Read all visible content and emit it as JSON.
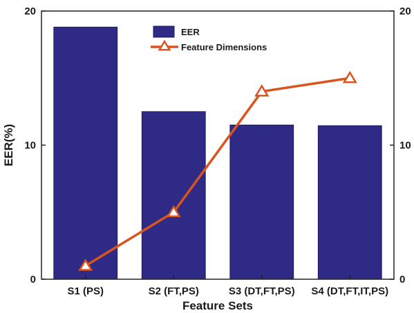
{
  "chart_data": {
    "type": "bar",
    "title": "",
    "xlabel": "Feature Sets",
    "ylabel": "EER(%)",
    "categories": [
      "S1 (PS)",
      "S2 (FT,PS)",
      "S3 (DT,FT,PS)",
      "S4 (DT,FT,IT,PS)"
    ],
    "ylim": [
      0,
      20
    ],
    "y2lim": [
      0,
      20
    ],
    "yticks": [
      0,
      10,
      20
    ],
    "y2ticks": [
      0,
      10,
      20
    ],
    "legend_position": "top-center",
    "grid": false,
    "series": [
      {
        "name": "EER",
        "type": "bar",
        "axis": "left",
        "color": "#2e2a85",
        "values": [
          18.8,
          12.5,
          11.5,
          11.45
        ]
      },
      {
        "name": "Feature Dimensions",
        "type": "line",
        "axis": "right",
        "marker": "triangle-open",
        "color": "#d9541e",
        "values": [
          1,
          5,
          14,
          15
        ]
      }
    ]
  }
}
